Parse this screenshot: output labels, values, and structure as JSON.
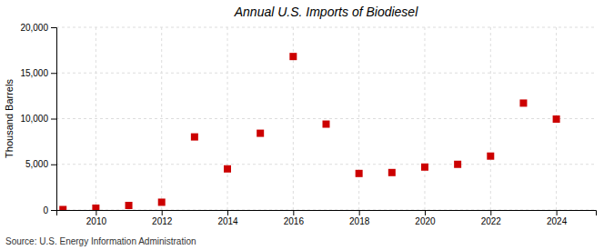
{
  "chart_data": {
    "type": "scatter",
    "title": "Annual U.S. Imports of Biodiesel",
    "ylabel": "Thousand Barrels",
    "source": "Source: U.S. Energy Information Administration",
    "x": [
      2009,
      2010,
      2011,
      2012,
      2013,
      2014,
      2015,
      2016,
      2017,
      2018,
      2019,
      2020,
      2021,
      2022,
      2023,
      2024
    ],
    "values": [
      50,
      200,
      500,
      850,
      8000,
      4500,
      8400,
      16800,
      9400,
      4000,
      4100,
      4700,
      5000,
      5900,
      11700,
      9950
    ],
    "color": "#cc0000",
    "marker": "square",
    "xlim": [
      2008.8,
      2025.2
    ],
    "xticks": [
      2010,
      2012,
      2014,
      2016,
      2018,
      2020,
      2022,
      2024
    ],
    "ylim": [
      0,
      20000
    ],
    "yticks": [
      0,
      {
        "value": 5000,
        "label": "5,000"
      },
      {
        "value": 10000,
        "label": "10,000"
      },
      {
        "value": 15000,
        "label": "15,000"
      },
      {
        "value": 20000,
        "label": "20,000"
      }
    ],
    "grid": true
  }
}
